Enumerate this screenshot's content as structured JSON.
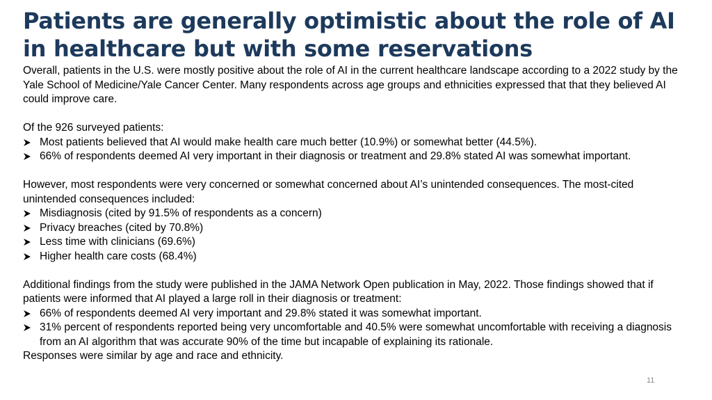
{
  "slide": {
    "title": "Patients are generally optimistic about the role of AI in healthcare but with some reservations",
    "intro": "Overall, patients in the U.S. were mostly positive about the role of AI in the current healthcare landscape according to a 2022 study by the Yale School of Medicine/Yale Cancer Center. Many respondents across age groups and ethnicities expressed that that they believed AI could improve care.",
    "surveyed_lead": "Of the 926 surveyed patients:",
    "surveyed_bullets": [
      "Most patients believed that AI would make health care much better (10.9%) or somewhat better (44.5%).",
      "66% of respondents deemed AI very important in their diagnosis or treatment and 29.8% stated AI was somewhat important."
    ],
    "concerns_lead": "However, most respondents were very concerned or somewhat concerned about AI’s unintended consequences. The most-cited unintended consequences included:",
    "concerns_bullets": [
      "Misdiagnosis (cited by 91.5% of respondents as a concern)",
      "Privacy breaches (cited by 70.8%)",
      "Less time with clinicians (69.6%)",
      "Higher health care costs (68.4%)"
    ],
    "additional_lead": "Additional findings from the study were published in the JAMA Network Open publication in May, 2022. Those findings showed that if patients were informed that AI played a large roll in their diagnosis or treatment:",
    "additional_bullets": [
      "66% of respondents deemed AI very important and 29.8% stated it was somewhat important.",
      "31% percent of respondents reported being very uncomfortable and 40.5% were somewhat uncomfortable with receiving a diagnosis from an AI algorithm that was accurate 90% of the time but incapable of explaining its rationale."
    ],
    "closing": "Responses were similar by age and race and ethnicity.",
    "page_number": "11",
    "bullet_icon": "arrowhead-bullet-icon",
    "title_color": "#1d3a5c"
  }
}
